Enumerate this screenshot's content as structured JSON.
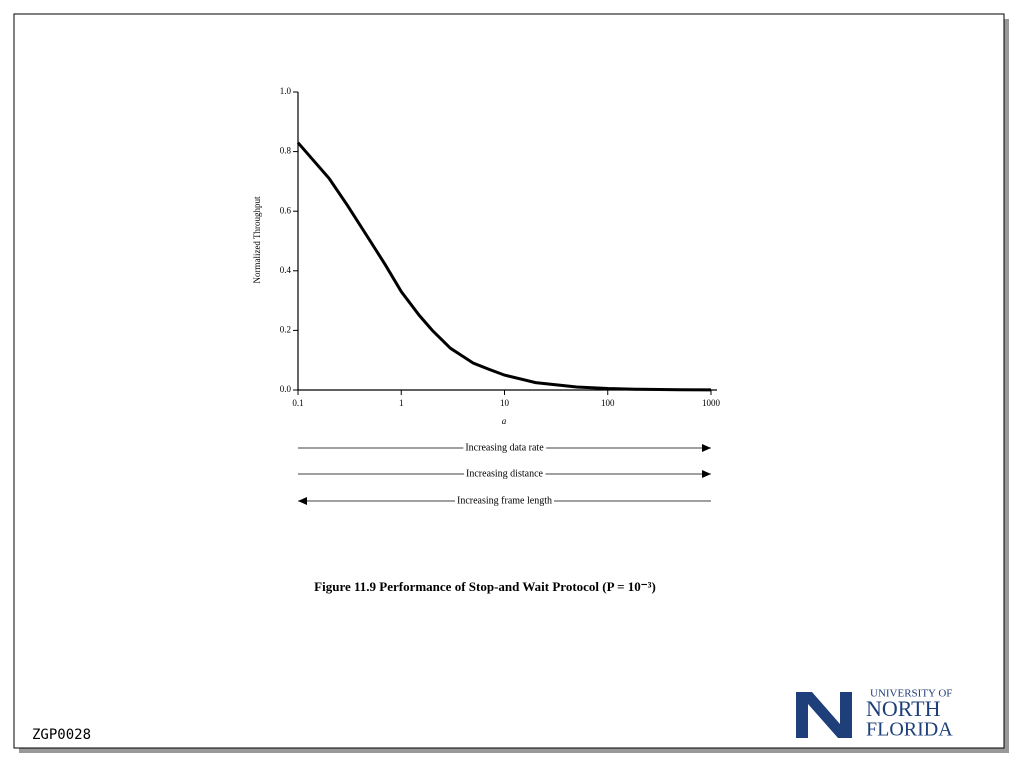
{
  "chart_data": {
    "type": "line",
    "caption": "Figure 11.9  Performance of Stop-and Wait Protocol (P = 10⁻³)",
    "xlabel": "a",
    "ylabel": "Normalized Throughput",
    "xscale": "log",
    "x": [
      0.1,
      0.2,
      0.3,
      0.5,
      0.7,
      1,
      1.5,
      2,
      3,
      5,
      7,
      10,
      20,
      50,
      100,
      200,
      500,
      1000
    ],
    "series": [
      {
        "color": "#000000",
        "values": [
          0.83,
          0.71,
          0.62,
          0.5,
          0.42,
          0.33,
          0.25,
          0.2,
          0.14,
          0.09,
          0.07,
          0.05,
          0.025,
          0.01,
          0.005,
          0.0025,
          0.001,
          0.0005
        ]
      }
    ],
    "xlim": [
      0.1,
      1000
    ],
    "xticks": [
      0.1,
      1,
      10,
      100,
      1000
    ],
    "ylim": [
      0,
      1
    ],
    "yticks": [
      {
        "value": 0,
        "label": "0.0"
      },
      0.2,
      0.4,
      0.6,
      0.8,
      {
        "value": 1,
        "label": "1.0"
      }
    ],
    "annotations": [
      {
        "text": "Increasing data rate",
        "direction": "right"
      },
      {
        "text": "Increasing distance",
        "direction": "right"
      },
      {
        "text": "Increasing frame length",
        "direction": "left"
      }
    ]
  },
  "footer": {
    "code": "ZGP0028",
    "logo": [
      "UNIVERSITY OF",
      "NORTH",
      "FLORIDA"
    ]
  }
}
